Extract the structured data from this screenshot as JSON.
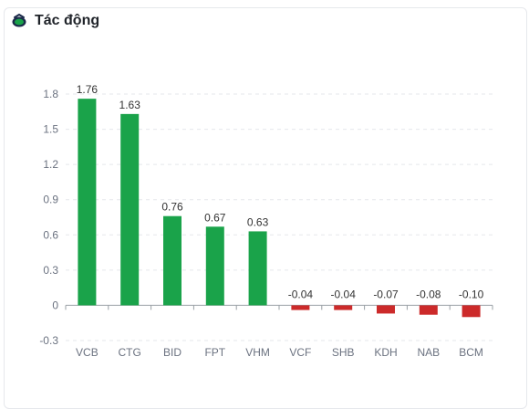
{
  "header": {
    "title": "Tác động",
    "icon": "impact-icon"
  },
  "colors": {
    "positive": "#1aa34a",
    "negative": "#cc2a2a",
    "icon_primary": "#1aa34a",
    "icon_dark": "#1b2a4a"
  },
  "chart_data": {
    "type": "bar",
    "categories": [
      "VCB",
      "CTG",
      "BID",
      "FPT",
      "VHM",
      "VCF",
      "SHB",
      "KDH",
      "NAB",
      "BCM"
    ],
    "values": [
      1.76,
      1.63,
      0.76,
      0.67,
      0.63,
      -0.04,
      -0.04,
      -0.07,
      -0.08,
      -0.1
    ],
    "value_labels": [
      "1.76",
      "1.63",
      "0.76",
      "0.67",
      "0.63",
      "-0.04",
      "-0.04",
      "-0.07",
      "-0.08",
      "-0.10"
    ],
    "yticks": [
      1.8,
      1.5,
      1.2,
      0.9,
      0.6,
      0.3,
      0,
      -0.3
    ],
    "ytick_labels": [
      "1.8",
      "1.5",
      "1.2",
      "0.9",
      "0.6",
      "0.3",
      "0",
      "-0.3"
    ],
    "ylim": [
      -0.3,
      1.8
    ],
    "grid": true,
    "title": "",
    "xlabel": "",
    "ylabel": ""
  }
}
